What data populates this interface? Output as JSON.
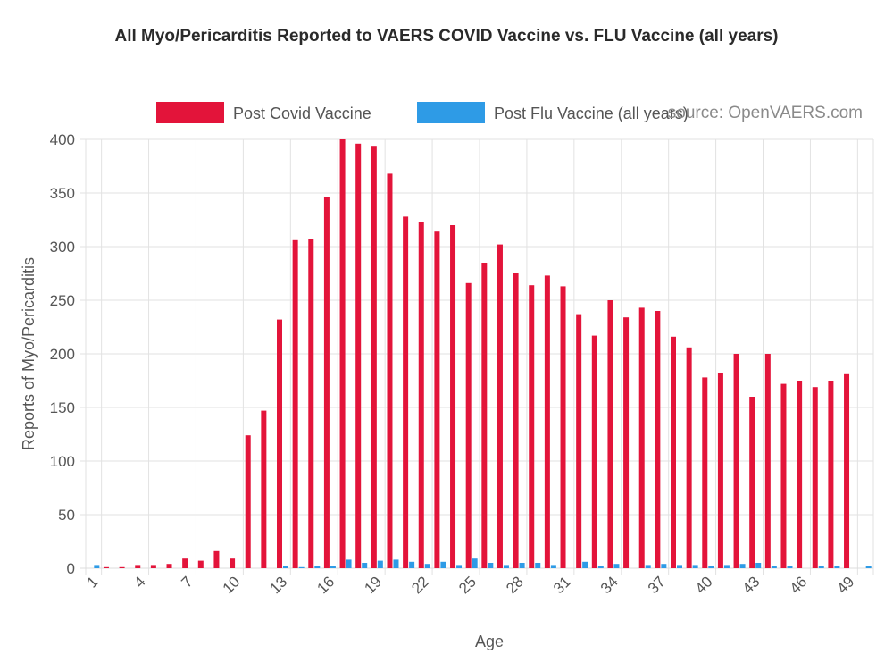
{
  "chart_data": {
    "type": "bar",
    "title": "All Myo/Pericarditis Reported to VAERS COVID Vaccine vs. FLU Vaccine (all years)",
    "xlabel": "Age",
    "ylabel": "Reports of Myo/Pericarditis",
    "ylim": [
      0,
      400
    ],
    "yticks": [
      0,
      50,
      100,
      150,
      200,
      250,
      300,
      350,
      400
    ],
    "categories": [
      "1",
      "2",
      "3",
      "4",
      "5",
      "6",
      "7",
      "8",
      "9",
      "10",
      "11",
      "12",
      "13",
      "14",
      "15",
      "16",
      "17",
      "18",
      "19",
      "20",
      "21",
      "22",
      "23",
      "24",
      "25",
      "26",
      "27",
      "28",
      "29",
      "30",
      "31",
      "32",
      "33",
      "34",
      "35",
      "36",
      "37",
      "38",
      "39",
      "40",
      "41",
      "42",
      "43",
      "44",
      "45",
      "46",
      "47",
      "48",
      "49",
      "50"
    ],
    "xtick_labels": [
      "1",
      "4",
      "7",
      "10",
      "13",
      "16",
      "19",
      "22",
      "25",
      "28",
      "31",
      "34",
      "37",
      "40",
      "43",
      "46",
      "49"
    ],
    "series": [
      {
        "name": "Post Covid Vaccine",
        "color": "#e3143a",
        "values": [
          0,
          1,
          1,
          3,
          3,
          4,
          9,
          7,
          16,
          9,
          124,
          147,
          232,
          306,
          307,
          346,
          400,
          396,
          394,
          368,
          328,
          323,
          314,
          320,
          266,
          285,
          302,
          275,
          264,
          273,
          263,
          237,
          217,
          250,
          234,
          243,
          240,
          216,
          206,
          178,
          182,
          200,
          160,
          200,
          172,
          175,
          169,
          175,
          181,
          0
        ]
      },
      {
        "name": "Post Flu Vaccine (all years)",
        "color": "#2e9be6",
        "values": [
          3,
          0,
          0,
          0,
          0,
          0,
          0,
          0,
          0,
          0,
          0,
          0,
          2,
          1,
          2,
          2,
          8,
          5,
          7,
          8,
          6,
          4,
          6,
          3,
          9,
          5,
          3,
          5,
          5,
          3,
          0,
          6,
          2,
          4,
          0,
          3,
          4,
          3,
          3,
          2,
          3,
          4,
          5,
          2,
          2,
          0,
          2,
          2,
          0,
          2
        ]
      }
    ],
    "legend": "top",
    "grid": true
  },
  "watermark": "source: OpenVAERS.com"
}
